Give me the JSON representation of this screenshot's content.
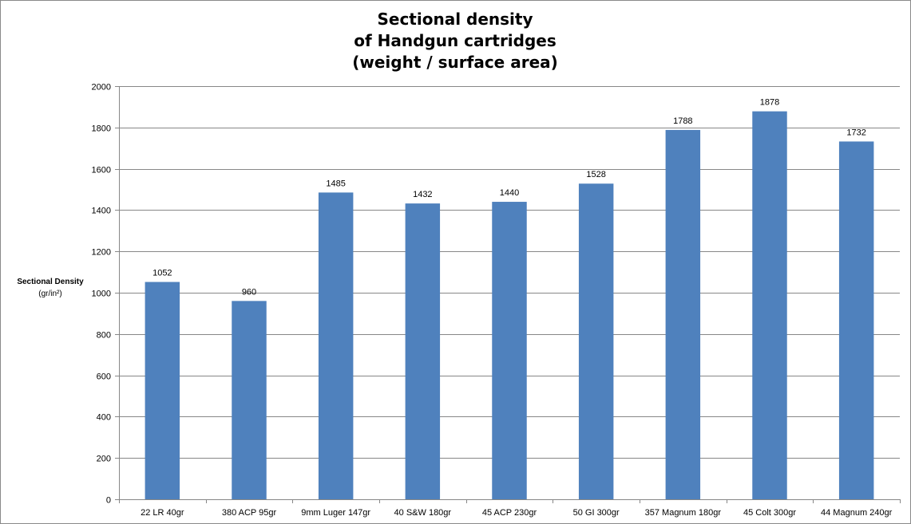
{
  "chart_data": {
    "type": "bar",
    "title": [
      "Sectional density",
      "of Handgun cartridges",
      "(weight / surface area)"
    ],
    "ylabel": "Sectional Density",
    "ylabel_unit": "(gr/in²)",
    "xlabel": "",
    "categories": [
      "22 LR 40gr",
      "380 ACP 95gr",
      "9mm Luger 147gr",
      "40 S&W 180gr",
      "45 ACP 230gr",
      "50 GI 300gr",
      "357 Magnum 180gr",
      "45 Colt 300gr",
      "44 Magnum 240gr"
    ],
    "values": [
      1052,
      960,
      1485,
      1432,
      1440,
      1528,
      1788,
      1878,
      1732
    ],
    "data_labels": [
      "1052",
      "960",
      "1485",
      "1432",
      "1440",
      "1528",
      "1788",
      "1878",
      "1732"
    ],
    "ylim": [
      0,
      2000
    ],
    "yticks": [
      0,
      200,
      400,
      600,
      800,
      1000,
      1200,
      1400,
      1600,
      1800,
      2000
    ],
    "ytick_labels": [
      "0",
      "200",
      "400",
      "600",
      "800",
      "1000",
      "1200",
      "1400",
      "1600",
      "1800",
      "2000"
    ],
    "grid": true,
    "legend": "none",
    "bar_color": "#4f81bd"
  }
}
